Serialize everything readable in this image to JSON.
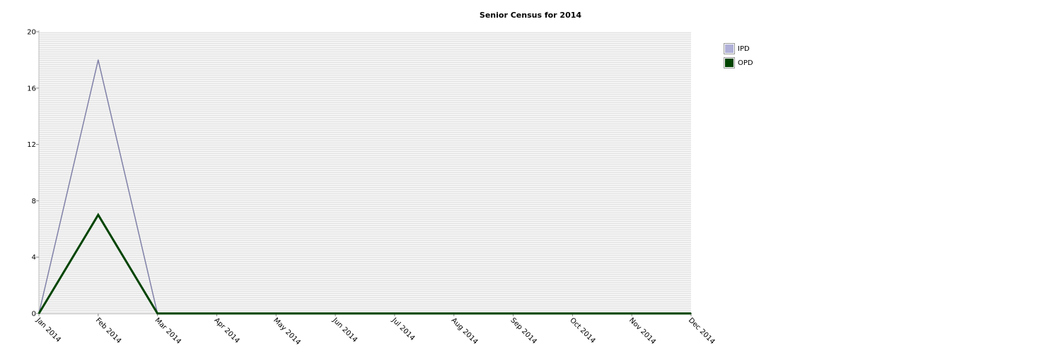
{
  "chart_data": {
    "type": "line",
    "title": "Senior Census for 2014",
    "xlabel": "",
    "ylabel": "",
    "categories": [
      "Jan 2014",
      "Feb 2014",
      "Mar 2014",
      "Apr 2014",
      "May 2014",
      "Jun 2014",
      "Jul 2014",
      "Aug 2014",
      "Sep 2014",
      "Oct 2014",
      "Nov 2014",
      "Dec 2014"
    ],
    "ylim": [
      0,
      20
    ],
    "yticks": [
      0,
      4,
      8,
      12,
      16,
      20
    ],
    "grid": true,
    "legend_position": "right",
    "series": [
      {
        "name": "IPD",
        "color": "#b0b0d8",
        "line_color": "#8080a8",
        "values": [
          0,
          18,
          0,
          0,
          0,
          0,
          0,
          0,
          0,
          0,
          0,
          0
        ]
      },
      {
        "name": "OPD",
        "color": "#004400",
        "line_color": "#004400",
        "values": [
          0,
          7,
          0,
          0,
          0,
          0,
          0,
          0,
          0,
          0,
          0,
          0
        ]
      }
    ]
  }
}
